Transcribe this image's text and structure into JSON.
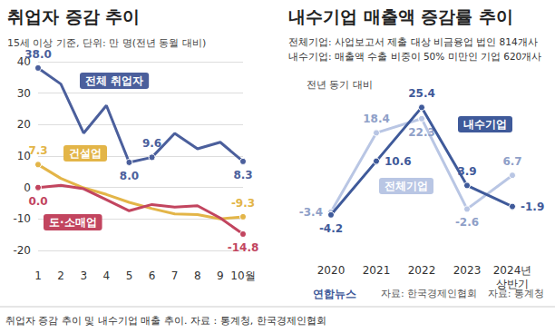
{
  "chart_data": [
    {
      "type": "line",
      "title": "취업자 증감 추이",
      "subtitle": "15세 이상 기준, 단위: 만 명(전년 동월 대비)",
      "source": "자료: 통계청",
      "categories": [
        "1",
        "2",
        "3",
        "4",
        "5",
        "6",
        "7",
        "8",
        "9",
        "10월"
      ],
      "series": [
        {
          "name": "전체 취업자",
          "color": "#4b5f9c",
          "values": [
            38.0,
            32.9,
            17.3,
            26.1,
            8.0,
            9.6,
            17.2,
            12.3,
            14.4,
            8.3
          ],
          "value_labels": [
            "38.0",
            null,
            null,
            null,
            "8.0",
            "9.6",
            null,
            null,
            null,
            "8.3"
          ]
        },
        {
          "name": "건설업",
          "color": "#e3b548",
          "values": [
            7.3,
            2.9,
            -0.1,
            -2.2,
            -4.7,
            -6.7,
            -8.4,
            -8.6,
            -10.0,
            -9.3
          ],
          "value_labels": [
            "7.3",
            null,
            null,
            null,
            null,
            null,
            null,
            null,
            null,
            "-9.3"
          ]
        },
        {
          "name": "도·소매업",
          "color": "#c2455f",
          "values": [
            0.0,
            0.7,
            -0.4,
            -3.9,
            -7.4,
            -5.4,
            -6.2,
            -5.8,
            -9.7,
            -14.8
          ],
          "value_labels": [
            "0.0",
            null,
            null,
            null,
            null,
            null,
            null,
            null,
            null,
            "-14.8"
          ]
        }
      ],
      "ylim": [
        -20,
        40
      ],
      "yticks": [
        -20,
        -10,
        0,
        10,
        20,
        30,
        40
      ],
      "grid": true,
      "data_labels": true,
      "marker": "circle"
    },
    {
      "type": "line",
      "title": "내수기업 매출액 증감률 추이",
      "annotations": [
        "전체기업: 사업보고서 제출 대상 비금융업 법인 814개사",
        "내수기업: 매출액 수출 비중이 50% 미만인 기업 620개사",
        "전년 동기 대비"
      ],
      "source": "자료: 한국경제인협회",
      "credit": "연합뉴스",
      "categories": [
        "2020",
        "2021",
        "2022",
        "2023",
        "2024년\n상반기"
      ],
      "series": [
        {
          "name": "전체기업",
          "color": "#b9c6e4",
          "values": [
            -3.4,
            18.4,
            22.3,
            -2.6,
            6.7
          ]
        },
        {
          "name": "내수기업",
          "color": "#3f5a9a",
          "values": [
            -4.2,
            10.6,
            25.4,
            3.9,
            -1.9
          ]
        }
      ],
      "ylim": [
        -15,
        30
      ],
      "grid": false,
      "data_labels": true,
      "tick_labels": "x",
      "marker": "circle"
    }
  ],
  "caption": "취업자 증감 추이 및 내수기업 매출 추이. 자료 : 통계청, 한국경제인협회"
}
